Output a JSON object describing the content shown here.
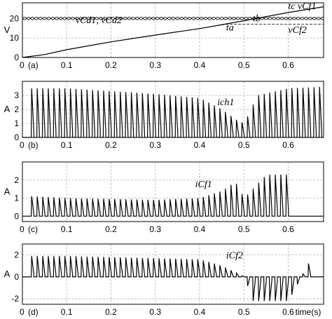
{
  "chart_data": [
    {
      "type": "line",
      "panel_label": "(a)",
      "ylabel": "V",
      "xlim": [
        0,
        0.68
      ],
      "ylim": [
        0,
        28
      ],
      "yticks": [
        0,
        10,
        20
      ],
      "xtick_labels": [
        "0",
        "0.1",
        "0.2",
        "0.3",
        "0.4",
        "0.5",
        "0.6"
      ],
      "series": [
        {
          "name": "vCd1, vCd2",
          "x": [
            0,
            0.68
          ],
          "y": [
            20,
            20
          ],
          "ripple": 0.7
        },
        {
          "name": "vCf1",
          "x": [
            0,
            0.05,
            0.1,
            0.2,
            0.3,
            0.4,
            0.5,
            0.6,
            0.68
          ],
          "y": [
            0,
            1.5,
            4,
            8,
            11.5,
            14.8,
            18.8,
            23,
            26
          ]
        },
        {
          "name": "vCf2",
          "x": [
            0,
            0.05,
            0.1,
            0.2,
            0.3,
            0.4,
            0.46,
            0.5,
            0.68
          ],
          "y": [
            0,
            1.5,
            4,
            8,
            11.5,
            14.8,
            17,
            17,
            17
          ]
        }
      ],
      "annotations": [
        {
          "text": "vCd1, vCd2",
          "x": 0.12,
          "y": 17.6
        },
        {
          "text": "tc vCf1",
          "x": 0.6,
          "y": 24.8
        },
        {
          "text": "tb",
          "x": 0.52,
          "y": 18.5
        },
        {
          "text": "ta",
          "x": 0.46,
          "y": 13.8
        },
        {
          "text": "vCf2",
          "x": 0.6,
          "y": 12.6
        }
      ]
    },
    {
      "type": "line",
      "panel_label": "(b)",
      "ylabel": "A",
      "xlim": [
        0,
        0.68
      ],
      "ylim": [
        0,
        4
      ],
      "yticks": [
        0,
        1,
        2,
        3
      ],
      "xtick_labels": [
        "0",
        "0.1",
        "0.2",
        "0.3",
        "0.4",
        "0.5",
        "0.6"
      ],
      "series": [
        {
          "name": "ich1",
          "shape": "pulse-train",
          "x": [
            0.02,
            0.1,
            0.2,
            0.3,
            0.4,
            0.45,
            0.48,
            0.5,
            0.53,
            0.6,
            0.67
          ],
          "y": [
            3.5,
            3.5,
            3.3,
            3.1,
            2.8,
            2.0,
            1.3,
            1.0,
            3.0,
            3.5,
            3.6
          ]
        }
      ],
      "annotations": [
        {
          "text": "ich1",
          "x": 0.44,
          "y": 2.3
        }
      ]
    },
    {
      "type": "line",
      "panel_label": "(c)",
      "ylabel": "A",
      "xlim": [
        0,
        0.68
      ],
      "ylim": [
        -0.3,
        3
      ],
      "yticks": [
        0,
        1,
        2
      ],
      "xtick_labels": [
        "0",
        "0.1",
        "0.2",
        "0.3",
        "0.4",
        "0.5",
        "0.6"
      ],
      "series": [
        {
          "name": "iCf1",
          "shape": "pulse-train",
          "x": [
            0.02,
            0.1,
            0.2,
            0.3,
            0.4,
            0.45,
            0.48,
            0.5,
            0.55,
            0.6
          ],
          "y": [
            1.1,
            1.0,
            0.95,
            0.9,
            1.0,
            1.4,
            1.9,
            1.0,
            2.3,
            2.3
          ]
        }
      ],
      "annotations": [
        {
          "text": "iCf1",
          "x": 0.39,
          "y": 1.6
        }
      ]
    },
    {
      "type": "line",
      "panel_label": "(d)",
      "ylabel": "A",
      "xlabel": "time(s)",
      "xlim": [
        0,
        0.68
      ],
      "ylim": [
        -2.5,
        3
      ],
      "yticks": [
        -2,
        0,
        2
      ],
      "xtick_labels": [
        "0",
        "0.1",
        "0.2",
        "0.3",
        "0.4",
        "0.5",
        "0.6"
      ],
      "series": [
        {
          "name": "iCf2",
          "shape": "pulse-train",
          "x": [
            0.02,
            0.1,
            0.2,
            0.3,
            0.4,
            0.45,
            0.5,
            0.52,
            0.6,
            0.65
          ],
          "y": [
            1.9,
            1.9,
            1.8,
            1.7,
            1.6,
            1.0,
            0,
            -2.2,
            -2.2,
            1.6
          ]
        }
      ],
      "annotations": [
        {
          "text": "iCf2",
          "x": 0.46,
          "y": 1.7
        }
      ]
    }
  ]
}
